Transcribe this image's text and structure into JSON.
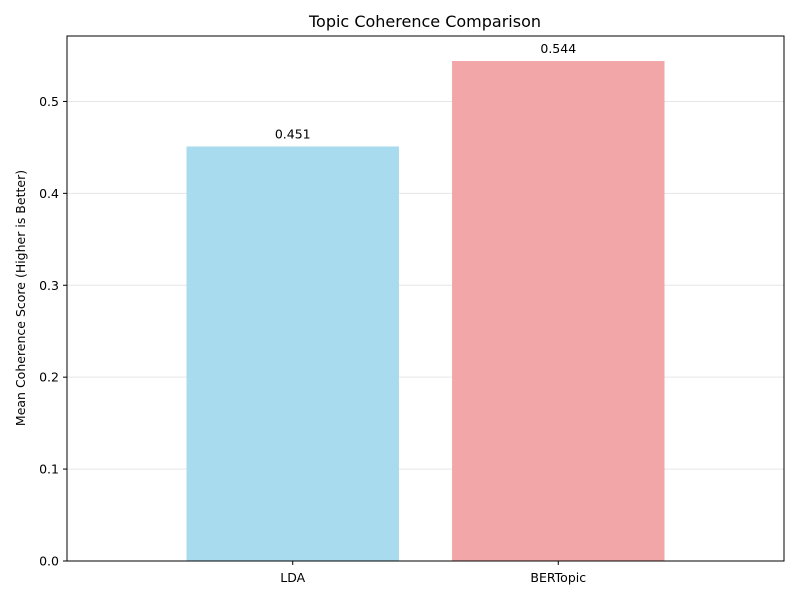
{
  "chart_data": {
    "type": "bar",
    "title": "Topic Coherence Comparison",
    "xlabel": "",
    "ylabel": "Mean Coherence Score (Higher is Better)",
    "categories": [
      "LDA",
      "BERTopic"
    ],
    "values": [
      0.451,
      0.544
    ],
    "data_labels": [
      "0.451",
      "0.544"
    ],
    "colors": [
      "#a8dbee",
      "#f3a6a7"
    ],
    "ylim": [
      0,
      0.5712
    ],
    "yticks": [
      0.0,
      0.1,
      0.2,
      0.3,
      0.4,
      0.5
    ],
    "ytick_labels": [
      "0.0",
      "0.1",
      "0.2",
      "0.3",
      "0.4",
      "0.5"
    ],
    "grid": true,
    "grid_axis": "y",
    "legend": "none"
  }
}
